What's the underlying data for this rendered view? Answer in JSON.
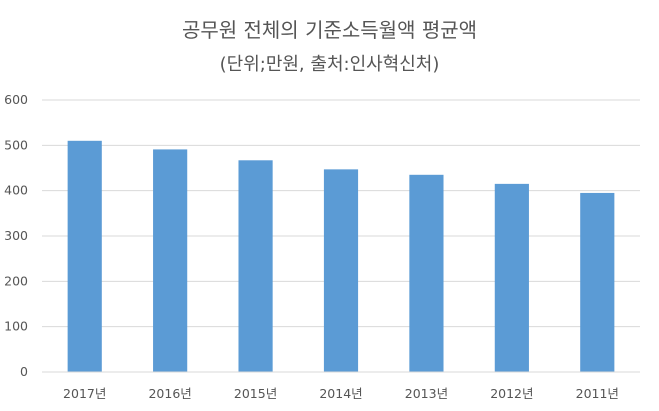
{
  "chart_data": {
    "type": "bar",
    "title": "공무원 전체의 기준소득월액 평균액",
    "subtitle": "(단위;만원, 출처:인사혁신처)",
    "categories": [
      "2017년",
      "2016년",
      "2015년",
      "2014년",
      "2013년",
      "2012년",
      "2011년"
    ],
    "values": [
      510,
      491,
      467,
      447,
      435,
      415,
      395
    ],
    "ylim": [
      0,
      600
    ],
    "yticks": [
      0,
      100,
      200,
      300,
      400,
      500,
      600
    ],
    "grid": true,
    "legend": "none",
    "bar_color": "#5b9bd5",
    "grid_color": "#d9d9d9",
    "text_color": "#595959"
  }
}
